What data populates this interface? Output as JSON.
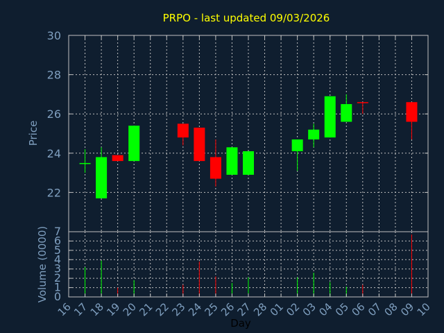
{
  "colors": {
    "background": "#0f1e2f",
    "title": "#ffff00",
    "axis_text": "#7f9fbf",
    "frame": "#c0c0c0",
    "grid": "#c0c0c0",
    "up": "#00ff00",
    "down": "#ff0000",
    "dark_text": "#000000"
  },
  "chart_data": [
    {
      "type": "candlestick",
      "title": "PRPO - last updated 09/03/2026",
      "ylabel": "Price",
      "ylim": [
        20.0,
        30.0
      ],
      "y_ticks": [
        "22",
        "24",
        "26",
        "28",
        "30"
      ],
      "grid": true,
      "days": [
        "16",
        "17",
        "18",
        "19",
        "20",
        "21",
        "22",
        "23",
        "24",
        "25",
        "26",
        "27",
        "28",
        "01",
        "02",
        "03",
        "04",
        "05",
        "06",
        "07",
        "08",
        "09",
        "10"
      ],
      "candles": [
        {
          "day": "17",
          "open": 23.5,
          "high": 24.2,
          "low": 23.0,
          "close": 23.5
        },
        {
          "day": "18",
          "open": 21.7,
          "high": 24.3,
          "low": 21.7,
          "close": 23.8
        },
        {
          "day": "19",
          "open": 23.9,
          "high": 23.9,
          "low": 23.6,
          "close": 23.6
        },
        {
          "day": "20",
          "open": 23.6,
          "high": 25.4,
          "low": 23.6,
          "close": 25.4
        },
        {
          "day": "23",
          "open": 25.5,
          "high": 25.5,
          "low": 24.4,
          "close": 24.8
        },
        {
          "day": "24",
          "open": 25.3,
          "high": 25.3,
          "low": 23.6,
          "close": 23.6
        },
        {
          "day": "25",
          "open": 23.8,
          "high": 24.7,
          "low": 22.3,
          "close": 22.7
        },
        {
          "day": "26",
          "open": 22.9,
          "high": 24.3,
          "low": 22.9,
          "close": 24.3
        },
        {
          "day": "27",
          "open": 22.9,
          "high": 24.1,
          "low": 22.9,
          "close": 24.1
        },
        {
          "day": "02",
          "open": 24.1,
          "high": 24.7,
          "low": 23.1,
          "close": 24.7
        },
        {
          "day": "03",
          "open": 24.7,
          "high": 25.5,
          "low": 24.3,
          "close": 25.2
        },
        {
          "day": "04",
          "open": 24.8,
          "high": 26.9,
          "low": 24.8,
          "close": 26.9
        },
        {
          "day": "05",
          "open": 25.6,
          "high": 27.0,
          "low": 25.6,
          "close": 26.5
        },
        {
          "day": "06",
          "open": 26.6,
          "high": 26.6,
          "low": 26.0,
          "close": 26.55
        },
        {
          "day": "09",
          "open": 26.6,
          "high": 26.6,
          "low": 24.7,
          "close": 25.6
        }
      ]
    },
    {
      "type": "bar",
      "xlabel": "Day",
      "ylabel": "Volume (0000)",
      "ylim": [
        0,
        7
      ],
      "y_ticks": [
        "0",
        "1",
        "2",
        "3",
        "4",
        "5",
        "6",
        "7"
      ],
      "grid": true,
      "bars": [
        {
          "day": "17",
          "value": 3.2,
          "direction": "up"
        },
        {
          "day": "18",
          "value": 3.9,
          "direction": "up"
        },
        {
          "day": "19",
          "value": 1.0,
          "direction": "down"
        },
        {
          "day": "20",
          "value": 1.8,
          "direction": "up"
        },
        {
          "day": "23",
          "value": 1.3,
          "direction": "down"
        },
        {
          "day": "24",
          "value": 3.8,
          "direction": "down"
        },
        {
          "day": "25",
          "value": 2.2,
          "direction": "down"
        },
        {
          "day": "26",
          "value": 1.5,
          "direction": "up"
        },
        {
          "day": "27",
          "value": 2.1,
          "direction": "up"
        },
        {
          "day": "02",
          "value": 2.1,
          "direction": "up"
        },
        {
          "day": "03",
          "value": 2.6,
          "direction": "up"
        },
        {
          "day": "04",
          "value": 1.6,
          "direction": "up"
        },
        {
          "day": "05",
          "value": 1.1,
          "direction": "up"
        },
        {
          "day": "06",
          "value": 1.3,
          "direction": "down"
        },
        {
          "day": "09",
          "value": 6.7,
          "direction": "down"
        }
      ]
    }
  ]
}
